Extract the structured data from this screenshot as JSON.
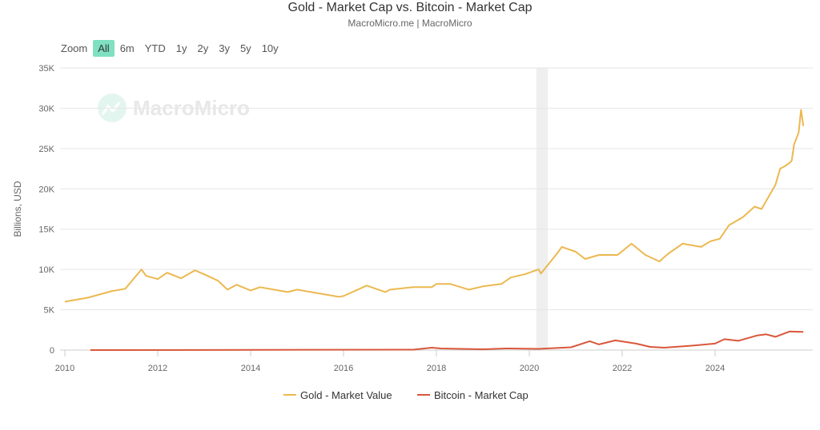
{
  "title": "Gold - Market Cap vs. Bitcoin - Market Cap",
  "subtitle": "MacroMicro.me | MacroMicro",
  "watermark": "MacroMicro",
  "zoom": {
    "label": "Zoom",
    "options": [
      "All",
      "6m",
      "YTD",
      "1y",
      "2y",
      "3y",
      "5y",
      "10y"
    ],
    "active": "All",
    "active_color": "#7fe0c2"
  },
  "chart_data": {
    "type": "line",
    "title": "Gold - Market Cap vs. Bitcoin - Market Cap",
    "ylabel": "Billions, USD",
    "ylim": [
      0,
      35000
    ],
    "yticks": [
      0,
      5000,
      10000,
      15000,
      20000,
      25000,
      30000,
      35000
    ],
    "ytick_labels": [
      "0",
      "5K",
      "10K",
      "15K",
      "20K",
      "25K",
      "30K",
      "35K"
    ],
    "xlim": [
      2010,
      2026
    ],
    "xticks": [
      "2010",
      "2012",
      "2014",
      "2016",
      "2018",
      "2020",
      "2022",
      "2024"
    ],
    "grid": true,
    "legend": "bottom",
    "shaded_regions": [
      [
        2020.15,
        2020.4
      ]
    ],
    "series": [
      {
        "name": "Gold - Market Value",
        "color": "#ecb850",
        "x": [
          2010.0,
          2010.5,
          2011.0,
          2011.3,
          2011.65,
          2011.75,
          2012.0,
          2012.2,
          2012.5,
          2012.8,
          2013.0,
          2013.3,
          2013.5,
          2013.7,
          2014.0,
          2014.2,
          2014.5,
          2014.8,
          2015.0,
          2015.5,
          2015.9,
          2016.0,
          2016.5,
          2016.9,
          2017.0,
          2017.5,
          2017.9,
          2018.0,
          2018.3,
          2018.7,
          2019.0,
          2019.4,
          2019.6,
          2019.9,
          2020.2,
          2020.25,
          2020.6,
          2020.7,
          2021.0,
          2021.2,
          2021.5,
          2021.9,
          2022.2,
          2022.5,
          2022.8,
          2023.0,
          2023.3,
          2023.7,
          2023.9,
          2024.1,
          2024.3,
          2024.6,
          2024.85,
          2025.0,
          2025.2,
          2025.3,
          2025.4,
          2025.5,
          2025.6,
          2025.65,
          2025.7,
          2025.8,
          2025.85,
          2025.9
        ],
        "values": [
          6000,
          6500,
          7300,
          7600,
          10000,
          9200,
          8800,
          9600,
          8900,
          9900,
          9400,
          8600,
          7500,
          8100,
          7400,
          7800,
          7500,
          7200,
          7500,
          7000,
          6600,
          6700,
          8000,
          7200,
          7500,
          7800,
          7800,
          8200,
          8200,
          7500,
          7900,
          8200,
          9000,
          9400,
          10000,
          9500,
          12000,
          12800,
          12200,
          11300,
          11800,
          11800,
          13200,
          11800,
          11000,
          12000,
          13200,
          12800,
          13500,
          13800,
          15500,
          16500,
          17800,
          17500,
          19500,
          20500,
          22500,
          22800,
          23200,
          23500,
          25500,
          27000,
          29800,
          27800
        ]
      },
      {
        "name": "Bitcoin - Market Cap",
        "color": "#d9573b",
        "x": [
          2010.55,
          2017.5,
          2017.9,
          2018.1,
          2019.0,
          2019.5,
          2020.2,
          2020.9,
          2021.3,
          2021.5,
          2021.85,
          2022.3,
          2022.6,
          2022.9,
          2023.5,
          2024.0,
          2024.2,
          2024.5,
          2024.9,
          2025.1,
          2025.3,
          2025.6,
          2025.9
        ],
        "values": [
          0,
          50,
          300,
          200,
          100,
          200,
          150,
          350,
          1100,
          700,
          1200,
          800,
          400,
          300,
          550,
          800,
          1350,
          1150,
          1800,
          1950,
          1650,
          2300,
          2250
        ]
      }
    ]
  }
}
